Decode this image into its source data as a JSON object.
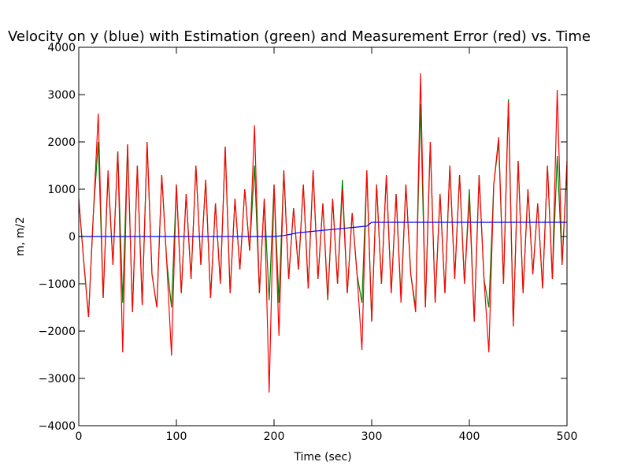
{
  "chart_data": {
    "type": "line",
    "title": "Velocity on y (blue) with Estimation (green) and Measurement Error (red) vs. Time",
    "xlabel": "Time (sec)",
    "ylabel": "m, m/2",
    "x": [
      0,
      5,
      10,
      15,
      20,
      25,
      30,
      35,
      40,
      45,
      50,
      55,
      60,
      65,
      70,
      75,
      80,
      85,
      90,
      95,
      100,
      105,
      110,
      115,
      120,
      125,
      130,
      135,
      140,
      145,
      150,
      155,
      160,
      165,
      170,
      175,
      180,
      185,
      190,
      195,
      200,
      205,
      210,
      215,
      220,
      225,
      230,
      235,
      240,
      245,
      250,
      255,
      260,
      265,
      270,
      275,
      280,
      285,
      290,
      295,
      300,
      305,
      310,
      315,
      320,
      325,
      330,
      335,
      340,
      345,
      350,
      355,
      360,
      365,
      370,
      375,
      380,
      385,
      390,
      395,
      400,
      405,
      410,
      415,
      420,
      425,
      430,
      435,
      440,
      445,
      450,
      455,
      460,
      465,
      470,
      475,
      480,
      485,
      490,
      495,
      500
    ],
    "series": [
      {
        "name": "Estimation",
        "color": "#008000",
        "values": [
          800,
          -500,
          -1700,
          500,
          2000,
          -1300,
          1300,
          -600,
          1800,
          -1400,
          1950,
          -1600,
          1500,
          -1450,
          2000,
          -800,
          -1500,
          1300,
          -500,
          -1500,
          1100,
          -1200,
          900,
          -900,
          1500,
          -600,
          1200,
          -1300,
          700,
          -1000,
          1900,
          -1200,
          800,
          -700,
          1000,
          -300,
          1500,
          -1200,
          800,
          -1350,
          1100,
          -1400,
          1400,
          -900,
          600,
          -700,
          1100,
          -1100,
          1400,
          -900,
          700,
          -1350,
          800,
          -1000,
          1200,
          -1200,
          500,
          -800,
          -1400,
          1400,
          -1800,
          1100,
          -1000,
          1300,
          -1200,
          900,
          -1300,
          1100,
          -800,
          -1500,
          2800,
          -1500,
          2000,
          -1400,
          900,
          -1200,
          1500,
          -900,
          1300,
          -1000,
          1000,
          -1800,
          1300,
          -900,
          -1500,
          1100,
          2000,
          -1000,
          2900,
          -1900,
          1600,
          -1200,
          1000,
          -800,
          700,
          -1100,
          1500,
          -900,
          1700,
          -600,
          1500
        ]
      },
      {
        "name": "Measurement Error",
        "color": "#ff0000",
        "values": [
          800,
          -500,
          -1700,
          500,
          2600,
          -1300,
          1400,
          -600,
          1800,
          -2450,
          1950,
          -1600,
          1500,
          -1450,
          2000,
          -800,
          -1500,
          1300,
          -500,
          -2520,
          1100,
          -1200,
          900,
          -900,
          1500,
          -600,
          1200,
          -1300,
          700,
          -1000,
          1900,
          -1200,
          800,
          -700,
          1000,
          -300,
          2350,
          -1200,
          800,
          -3300,
          1100,
          -2100,
          1400,
          -900,
          600,
          -700,
          1100,
          -1100,
          1400,
          -900,
          700,
          -1300,
          800,
          -1000,
          1000,
          -1200,
          500,
          -800,
          -2400,
          1400,
          -1800,
          1100,
          -1000,
          1300,
          -1200,
          900,
          -1400,
          1100,
          -800,
          -1600,
          3450,
          -1500,
          2000,
          -1400,
          900,
          -1200,
          1500,
          -900,
          1300,
          -1000,
          800,
          -1800,
          1300,
          -900,
          -2450,
          1100,
          2100,
          -1000,
          2850,
          -1900,
          1600,
          -1200,
          1000,
          -800,
          700,
          -1100,
          1500,
          -900,
          3100,
          -600,
          1600
        ]
      },
      {
        "name": "Velocity on y",
        "color": "#0000ff",
        "values": [
          0,
          0,
          0,
          0,
          0,
          0,
          0,
          0,
          0,
          0,
          0,
          0,
          0,
          0,
          0,
          0,
          0,
          0,
          0,
          0,
          0,
          0,
          0,
          0,
          0,
          0,
          0,
          0,
          0,
          0,
          0,
          0,
          0,
          0,
          0,
          0,
          0,
          0,
          0,
          0,
          0,
          10,
          20,
          40,
          60,
          80,
          90,
          100,
          110,
          120,
          130,
          140,
          150,
          160,
          170,
          180,
          190,
          200,
          210,
          220,
          300,
          300,
          300,
          300,
          300,
          300,
          300,
          300,
          300,
          300,
          300,
          300,
          300,
          300,
          300,
          300,
          300,
          300,
          300,
          300,
          300,
          300,
          300,
          300,
          300,
          300,
          300,
          300,
          300,
          300,
          300,
          300,
          300,
          300,
          300,
          300,
          300,
          300,
          300,
          300,
          300
        ]
      }
    ],
    "xlim": [
      0,
      500
    ],
    "ylim": [
      -4000,
      4000
    ],
    "xticks": [
      0,
      100,
      200,
      300,
      400,
      500
    ],
    "yticks": [
      {
        "value": -4000,
        "label": "−4000"
      },
      {
        "value": -3000,
        "label": "−3000"
      },
      {
        "value": -2000,
        "label": "−2000"
      },
      {
        "value": -1000,
        "label": "−1000"
      },
      0,
      1000,
      2000,
      3000,
      4000
    ]
  }
}
